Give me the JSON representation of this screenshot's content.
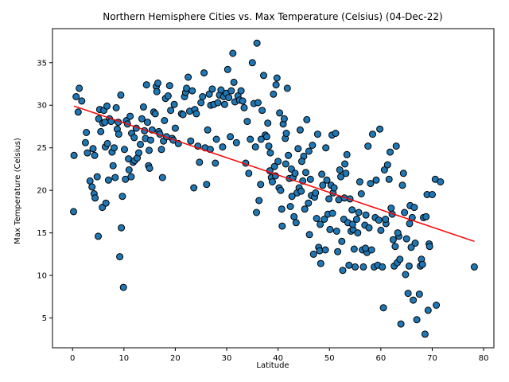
{
  "chart_data": {
    "type": "scatter",
    "title": "Northern Hemisphere Cities vs. Max Temperature (Celsius) (04-Dec-22)",
    "xlabel": "Latitude",
    "ylabel": "Max Temperature (Celsius)",
    "xlim": [
      -3.9,
      82.0
    ],
    "ylim": [
      1.5,
      39.0
    ],
    "xticks": [
      0,
      10,
      20,
      30,
      40,
      50,
      60,
      70,
      80
    ],
    "yticks": [
      5,
      10,
      15,
      20,
      25,
      30,
      35
    ],
    "grid": false,
    "legend": "none",
    "marker_color": "#1f77b4",
    "marker_edge_color": "#000000",
    "regression_color": "#ff0000",
    "regression_line": {
      "x": [
        0.3,
        78.2
      ],
      "y": [
        29.9,
        14.0
      ]
    },
    "points": [
      [
        0.3,
        24.1
      ],
      [
        0.2,
        17.5
      ],
      [
        0.7,
        31.0
      ],
      [
        1.3,
        32.0
      ],
      [
        1.8,
        30.5
      ],
      [
        2.5,
        25.6
      ],
      [
        2.7,
        26.8
      ],
      [
        2.9,
        24.4
      ],
      [
        3.4,
        21.1
      ],
      [
        3.8,
        20.4
      ],
      [
        4.0,
        24.9
      ],
      [
        4.2,
        19.6
      ],
      [
        4.3,
        24.1
      ],
      [
        4.4,
        19.1
      ],
      [
        4.8,
        21.6
      ],
      [
        5.0,
        14.6
      ],
      [
        5.1,
        28.4
      ],
      [
        5.3,
        29.5
      ],
      [
        5.5,
        26.9
      ],
      [
        5.8,
        18.0
      ],
      [
        5.9,
        27.9
      ],
      [
        6.1,
        29.4
      ],
      [
        6.4,
        25.1
      ],
      [
        6.5,
        18.5
      ],
      [
        6.7,
        29.9
      ],
      [
        6.8,
        25.5
      ],
      [
        7.0,
        21.2
      ],
      [
        7.2,
        28.4
      ],
      [
        7.5,
        28.1
      ],
      [
        7.7,
        24.5
      ],
      [
        7.9,
        22.9
      ],
      [
        8.1,
        25.0
      ],
      [
        8.3,
        21.5
      ],
      [
        8.5,
        29.7
      ],
      [
        8.7,
        27.2
      ],
      [
        8.9,
        28.0
      ],
      [
        9.0,
        26.6
      ],
      [
        9.2,
        12.2
      ],
      [
        9.4,
        31.2
      ],
      [
        9.5,
        15.6
      ],
      [
        9.7,
        19.3
      ],
      [
        9.9,
        8.6
      ],
      [
        10.1,
        24.8
      ],
      [
        10.3,
        21.3
      ],
      [
        10.5,
        28.2
      ],
      [
        10.7,
        27.8
      ],
      [
        10.9,
        23.7
      ],
      [
        11.0,
        22.4
      ],
      [
        11.2,
        28.7
      ],
      [
        11.4,
        21.6
      ],
      [
        11.5,
        26.7
      ],
      [
        11.8,
        23.3
      ],
      [
        12.1,
        23.5
      ],
      [
        12.4,
        27.3
      ],
      [
        12.6,
        23.8
      ],
      [
        12.9,
        24.4
      ],
      [
        13.2,
        25.4
      ],
      [
        13.5,
        28.4
      ],
      [
        13.8,
        29.8
      ],
      [
        14.0,
        27.0
      ],
      [
        14.2,
        26.1
      ],
      [
        14.4,
        32.4
      ],
      [
        14.6,
        28.0
      ],
      [
        14.8,
        22.9
      ],
      [
        14.9,
        24.7
      ],
      [
        15.0,
        22.6
      ],
      [
        15.2,
        25.9
      ],
      [
        15.5,
        27.1
      ],
      [
        15.8,
        29.2
      ],
      [
        16.1,
        29.0
      ],
      [
        16.3,
        32.2
      ],
      [
        16.4,
        31.6
      ],
      [
        16.6,
        32.6
      ],
      [
        16.8,
        26.9
      ],
      [
        17.0,
        26.6
      ],
      [
        17.3,
        24.8
      ],
      [
        17.5,
        21.5
      ],
      [
        17.7,
        25.8
      ],
      [
        17.9,
        28.2
      ],
      [
        18.1,
        30.8
      ],
      [
        18.3,
        26.3
      ],
      [
        18.6,
        31.1
      ],
      [
        18.9,
        32.3
      ],
      [
        19.1,
        29.4
      ],
      [
        19.4,
        26.1
      ],
      [
        19.6,
        25.9
      ],
      [
        19.8,
        30.1
      ],
      [
        20.0,
        27.3
      ],
      [
        21.2,
        29.0
      ],
      [
        21.5,
        28.9
      ],
      [
        21.8,
        31.0
      ],
      [
        22.0,
        31.5
      ],
      [
        22.2,
        32.0
      ],
      [
        22.5,
        33.3
      ],
      [
        22.8,
        29.3
      ],
      [
        23.0,
        25.8
      ],
      [
        23.3,
        31.7
      ],
      [
        23.6,
        20.3
      ],
      [
        23.8,
        29.5
      ],
      [
        24.1,
        29.0
      ],
      [
        24.4,
        25.2
      ],
      [
        24.7,
        23.3
      ],
      [
        25.0,
        30.3
      ],
      [
        25.3,
        31.0
      ],
      [
        25.6,
        33.8
      ],
      [
        25.8,
        25.0
      ],
      [
        26.1,
        20.7
      ],
      [
        26.3,
        27.1
      ],
      [
        26.6,
        31.3
      ],
      [
        26.9,
        30.0
      ],
      [
        27.2,
        31.9
      ],
      [
        27.5,
        30.1
      ],
      [
        27.8,
        23.2
      ],
      [
        28.0,
        26.0
      ],
      [
        28.3,
        30.3
      ],
      [
        28.6,
        31.2
      ],
      [
        28.9,
        31.8
      ],
      [
        29.2,
        25.1
      ],
      [
        29.4,
        31.0
      ],
      [
        29.6,
        30.1
      ],
      [
        29.9,
        31.4
      ],
      [
        30.2,
        34.2
      ],
      [
        30.4,
        30.9
      ],
      [
        30.7,
        26.3
      ],
      [
        30.9,
        31.7
      ],
      [
        31.2,
        36.1
      ],
      [
        31.4,
        32.7
      ],
      [
        31.6,
        30.4
      ],
      [
        31.9,
        25.6
      ],
      [
        32.2,
        31.1
      ],
      [
        32.5,
        30.6
      ],
      [
        32.8,
        31.7
      ],
      [
        33.1,
        30.5
      ],
      [
        33.4,
        29.7
      ],
      [
        33.7,
        23.2
      ],
      [
        34.0,
        28.1
      ],
      [
        34.3,
        22.0
      ],
      [
        34.6,
        26.0
      ],
      [
        35.0,
        35.0
      ],
      [
        35.3,
        30.2
      ],
      [
        35.6,
        25.1
      ],
      [
        35.8,
        17.4
      ],
      [
        35.9,
        37.3
      ],
      [
        36.1,
        30.3
      ],
      [
        36.3,
        18.8
      ],
      [
        36.6,
        20.7
      ],
      [
        36.9,
        29.4
      ],
      [
        37.2,
        33.5
      ],
      [
        37.5,
        26.5
      ],
      [
        37.8,
        26.3
      ],
      [
        38.0,
        27.9
      ],
      [
        38.2,
        25.2
      ],
      [
        38.5,
        24.4
      ],
      [
        38.7,
        21.5
      ],
      [
        38.9,
        21.0
      ],
      [
        39.1,
        31.3
      ],
      [
        39.3,
        22.8
      ],
      [
        39.6,
        32.4
      ],
      [
        39.8,
        33.2
      ],
      [
        40.0,
        23.4
      ],
      [
        40.2,
        20.3
      ],
      [
        40.3,
        29.1
      ],
      [
        40.5,
        20.0
      ],
      [
        40.7,
        17.8
      ],
      [
        40.8,
        15.8
      ],
      [
        41.0,
        27.8
      ],
      [
        41.2,
        28.4
      ],
      [
        41.4,
        26.1
      ],
      [
        41.6,
        26.7
      ],
      [
        41.8,
        32.0
      ],
      [
        42.0,
        24.1
      ],
      [
        42.2,
        21.4
      ],
      [
        42.4,
        18.1
      ],
      [
        42.6,
        22.5
      ],
      [
        42.9,
        21.5
      ],
      [
        43.1,
        16.9
      ],
      [
        43.3,
        22.0
      ],
      [
        43.5,
        16.2
      ],
      [
        43.7,
        19.7
      ],
      [
        43.9,
        24.9
      ],
      [
        44.1,
        20.3
      ],
      [
        44.3,
        27.1
      ],
      [
        44.5,
        19.9
      ],
      [
        44.8,
        21.1
      ],
      [
        45.0,
        24.0
      ],
      [
        45.2,
        17.8
      ],
      [
        45.4,
        22.1
      ],
      [
        45.6,
        28.3
      ],
      [
        45.9,
        18.5
      ],
      [
        46.1,
        14.8
      ],
      [
        46.3,
        21.3
      ],
      [
        46.5,
        19.4
      ],
      [
        46.7,
        25.3
      ],
      [
        46.9,
        12.5
      ],
      [
        47.1,
        19.2
      ],
      [
        47.3,
        19.7
      ],
      [
        47.5,
        16.7
      ],
      [
        47.7,
        26.6
      ],
      [
        47.9,
        13.3
      ],
      [
        48.1,
        12.9
      ],
      [
        48.3,
        11.4
      ],
      [
        48.5,
        21.9
      ],
      [
        48.7,
        20.6
      ],
      [
        49.0,
        16.6
      ],
      [
        49.2,
        13.0
      ],
      [
        49.3,
        25.0
      ],
      [
        49.5,
        21.2
      ],
      [
        49.7,
        17.2
      ],
      [
        49.9,
        19.0
      ],
      [
        50.1,
        15.4
      ],
      [
        50.3,
        20.6
      ],
      [
        50.5,
        26.5
      ],
      [
        50.7,
        19.7
      ],
      [
        50.9,
        20.3
      ],
      [
        51.2,
        26.7
      ],
      [
        51.4,
        15.2
      ],
      [
        51.6,
        12.8
      ],
      [
        51.8,
        18.9
      ],
      [
        52.0,
        22.4
      ],
      [
        52.2,
        21.6
      ],
      [
        52.4,
        14.0
      ],
      [
        52.6,
        10.6
      ],
      [
        52.8,
        16.6
      ],
      [
        53.0,
        23.1
      ],
      [
        53.2,
        22.0
      ],
      [
        53.4,
        24.2
      ],
      [
        53.6,
        16.2
      ],
      [
        53.8,
        11.2
      ],
      [
        54.0,
        19.0
      ],
      [
        54.2,
        15.2
      ],
      [
        54.4,
        17.7
      ],
      [
        54.6,
        15.4
      ],
      [
        54.8,
        13.1
      ],
      [
        55.0,
        11.0
      ],
      [
        55.3,
        16.6
      ],
      [
        55.5,
        15.0
      ],
      [
        55.7,
        17.4
      ],
      [
        55.9,
        21.0
      ],
      [
        56.2,
        19.6
      ],
      [
        56.4,
        13.0
      ],
      [
        56.6,
        11.0
      ],
      [
        56.9,
        15.9
      ],
      [
        57.1,
        17.1
      ],
      [
        57.3,
        12.7
      ],
      [
        57.5,
        25.2
      ],
      [
        57.7,
        15.6
      ],
      [
        58.0,
        20.8
      ],
      [
        58.2,
        13.0
      ],
      [
        58.4,
        26.6
      ],
      [
        58.7,
        11.0
      ],
      [
        58.9,
        16.8
      ],
      [
        59.1,
        21.2
      ],
      [
        59.4,
        11.2
      ],
      [
        59.6,
        16.5
      ],
      [
        59.8,
        27.2
      ],
      [
        60.0,
        15.3
      ],
      [
        60.3,
        11.0
      ],
      [
        60.5,
        6.2
      ],
      [
        60.7,
        22.4
      ],
      [
        61.0,
        16.1
      ],
      [
        61.3,
        23.0
      ],
      [
        61.6,
        21.3
      ],
      [
        61.8,
        24.5
      ],
      [
        62.0,
        17.9
      ],
      [
        62.2,
        17.2
      ],
      [
        62.4,
        14.2
      ],
      [
        62.6,
        11.1
      ],
      [
        62.8,
        13.4
      ],
      [
        63.0,
        25.2
      ],
      [
        63.2,
        11.5
      ],
      [
        63.5,
        14.6
      ],
      [
        63.7,
        11.9
      ],
      [
        63.9,
        4.3
      ],
      [
        64.2,
        20.6
      ],
      [
        64.4,
        22.0
      ],
      [
        64.6,
        17.4
      ],
      [
        64.8,
        10.1
      ],
      [
        65.0,
        14.3
      ],
      [
        65.3,
        7.9
      ],
      [
        65.5,
        11.1
      ],
      [
        65.7,
        18.2
      ],
      [
        65.9,
        13.3
      ],
      [
        66.1,
        16.8
      ],
      [
        66.3,
        7.1
      ],
      [
        66.5,
        18.0
      ],
      [
        66.7,
        13.8
      ],
      [
        67.0,
        4.8
      ],
      [
        67.5,
        7.8
      ],
      [
        67.7,
        11.1
      ],
      [
        67.9,
        11.9
      ],
      [
        68.1,
        11.3
      ],
      [
        68.3,
        16.8
      ],
      [
        68.6,
        3.1
      ],
      [
        68.8,
        16.9
      ],
      [
        69.0,
        19.5
      ],
      [
        69.2,
        5.9
      ],
      [
        69.4,
        13.7
      ],
      [
        69.5,
        13.4
      ],
      [
        70.0,
        19.5
      ],
      [
        70.6,
        21.3
      ],
      [
        70.8,
        6.5
      ],
      [
        71.6,
        21.0
      ],
      [
        78.2,
        11.0
      ],
      [
        1.1,
        29.2
      ],
      [
        6.3,
        28.0
      ],
      [
        12.0,
        26.2
      ],
      [
        20.6,
        25.5
      ],
      [
        26.8,
        24.8
      ],
      [
        36.7,
        26.0
      ],
      [
        38.4,
        22.3
      ],
      [
        39.5,
        21.7
      ],
      [
        41.5,
        23.1
      ],
      [
        42.7,
        19.3
      ],
      [
        44.6,
        23.4
      ],
      [
        46.0,
        24.6
      ],
      [
        48.2,
        16.0
      ],
      [
        50.6,
        17.3
      ],
      [
        52.9,
        19.1
      ],
      [
        54.5,
        16.0
      ],
      [
        57.0,
        13.2
      ],
      [
        60.9,
        16.6
      ],
      [
        63.3,
        15.0
      ],
      [
        65.6,
        16.1
      ]
    ]
  }
}
